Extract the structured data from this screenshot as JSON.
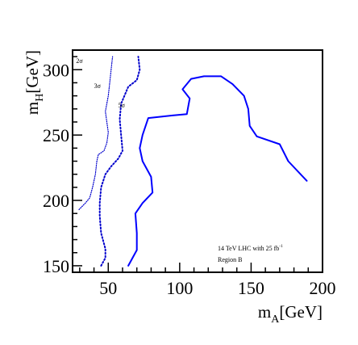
{
  "chart_data": {
    "type": "line",
    "xlabel_main": "m",
    "xlabel_sub": "A",
    "xlabel_unit": "[GeV]",
    "ylabel_main": "m",
    "ylabel_sub": "H",
    "ylabel_unit": "[GeV]",
    "xlim": [
      25,
      200
    ],
    "ylim": [
      145,
      315
    ],
    "x_ticks": [
      {
        "value": 50,
        "label": "50"
      },
      {
        "value": 100,
        "label": "100"
      },
      {
        "value": 150,
        "label": "150"
      },
      {
        "value": 200,
        "label": "200"
      }
    ],
    "y_ticks": [
      {
        "value": 150,
        "label": "150"
      },
      {
        "value": 200,
        "label": "200"
      },
      {
        "value": 250,
        "label": "250"
      },
      {
        "value": 300,
        "label": "300"
      }
    ],
    "annotation_lines": [
      "14 TeV LHC with 25 fb",
      "Region B"
    ],
    "annotation_sup": "-1",
    "series": [
      {
        "name": "2σ",
        "style": "dotted-fine",
        "color": "#0000cc",
        "label_at": [
          27.5,
          305
        ],
        "points": [
          [
            29.5,
            193
          ],
          [
            34,
            198
          ],
          [
            37,
            202
          ],
          [
            39,
            210
          ],
          [
            41,
            220
          ],
          [
            42,
            230
          ],
          [
            43,
            235
          ],
          [
            47,
            238
          ],
          [
            49,
            244
          ],
          [
            50,
            252
          ],
          [
            48,
            268
          ],
          [
            50,
            280
          ],
          [
            51,
            290
          ],
          [
            52,
            300
          ],
          [
            53,
            310
          ]
        ]
      },
      {
        "name": "3σ",
        "style": "dotted",
        "color": "#0000cc",
        "label_at": [
          40,
          286
        ],
        "points": [
          [
            45,
            150
          ],
          [
            48,
            156
          ],
          [
            48,
            163
          ],
          [
            45,
            175
          ],
          [
            44,
            188
          ],
          [
            44,
            198
          ],
          [
            45,
            210
          ],
          [
            48,
            220
          ],
          [
            52,
            226
          ],
          [
            57,
            232
          ],
          [
            60,
            238
          ],
          [
            59,
            250
          ],
          [
            58,
            262
          ],
          [
            59,
            274
          ],
          [
            64,
            287
          ],
          [
            70,
            292
          ],
          [
            72,
            300
          ],
          [
            71,
            310
          ]
        ]
      },
      {
        "name": "5σ",
        "style": "solid",
        "color": "#0000ff",
        "label_at": [
          57,
          271
        ],
        "points": [
          [
            64,
            150
          ],
          [
            70,
            162
          ],
          [
            70,
            175
          ],
          [
            69,
            190
          ],
          [
            74,
            198
          ],
          [
            81,
            206
          ],
          [
            80,
            218
          ],
          [
            74,
            230
          ],
          [
            72,
            240
          ],
          [
            74,
            250
          ],
          [
            78,
            263
          ],
          [
            95,
            265
          ],
          [
            105,
            266
          ],
          [
            107,
            278
          ],
          [
            102,
            285
          ],
          [
            108,
            293
          ],
          [
            117,
            295
          ],
          [
            129,
            295
          ],
          [
            137,
            289
          ],
          [
            145,
            280
          ],
          [
            148,
            270
          ],
          [
            149,
            257
          ],
          [
            154,
            249
          ],
          [
            170,
            243
          ],
          [
            176,
            230
          ],
          [
            189,
            215
          ]
        ]
      }
    ]
  }
}
